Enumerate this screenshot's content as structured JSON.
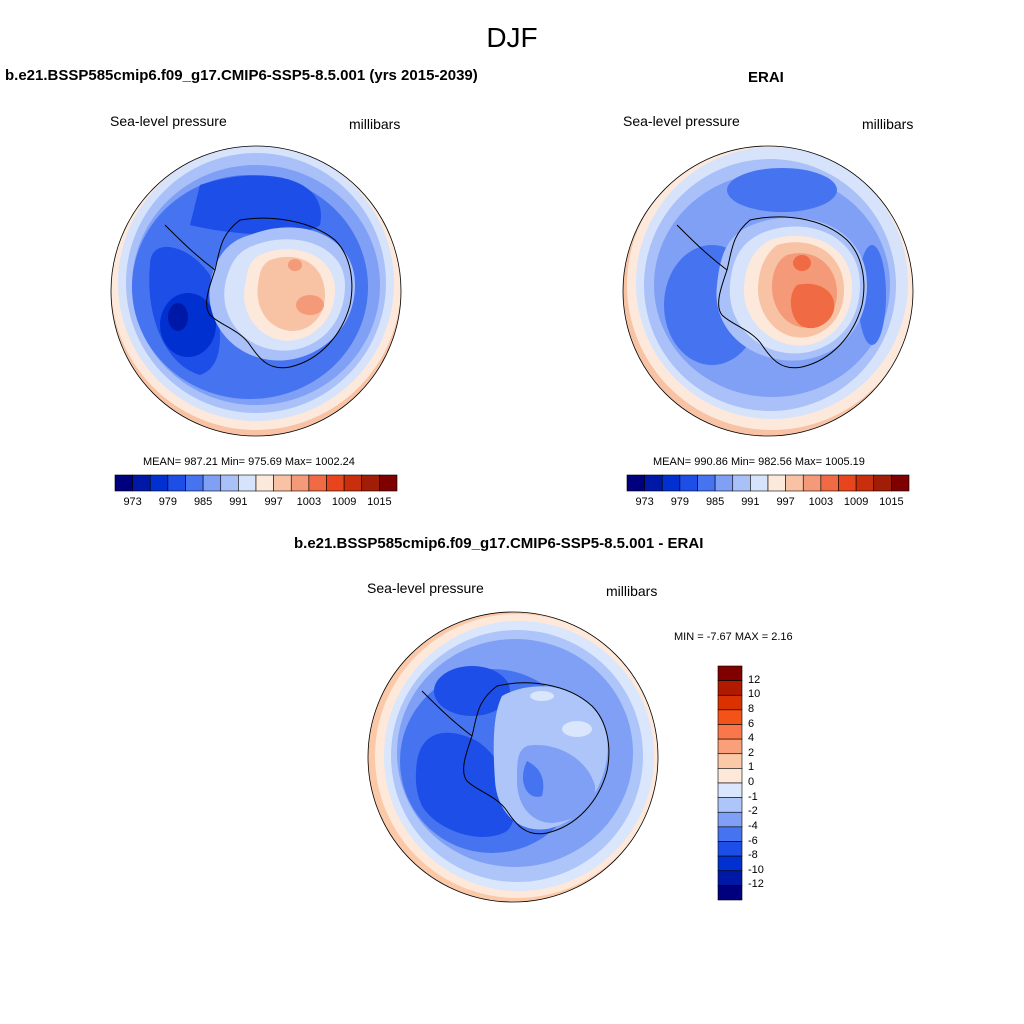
{
  "title": "DJF",
  "panels": [
    {
      "title": "b.e21.BSSP585cmip6.f09_g17.CMIP6-SSP5-8.5.001 (yrs 2015-2039)",
      "variable": "Sea-level pressure",
      "units": "millibars",
      "stats": "MEAN= 987.21  Min= 975.69  Max= 1002.24",
      "colorbar_labels": [
        "973",
        "979",
        "985",
        "991",
        "997",
        "1003",
        "1009",
        "1015"
      ]
    },
    {
      "title": "ERAI",
      "variable": "Sea-level pressure",
      "units": "millibars",
      "stats": "MEAN= 990.86  Min= 982.56  Max= 1005.19",
      "colorbar_labels": [
        "973",
        "979",
        "985",
        "991",
        "997",
        "1003",
        "1009",
        "1015"
      ]
    },
    {
      "title": "b.e21.BSSP585cmip6.f09_g17.CMIP6-SSP5-8.5.001 - ERAI",
      "variable": "Sea-level pressure",
      "units": "millibars",
      "stats": "MIN =  -7.67 MAX =   2.16",
      "colorbar_labels": [
        "12",
        "10",
        "8",
        "6",
        "4",
        "2",
        "1",
        "0",
        "-1",
        "-2",
        "-4",
        "-6",
        "-8",
        "-10",
        "-12"
      ]
    }
  ],
  "colors": {
    "slp_scale": [
      "#00007f",
      "#0018a6",
      "#0030d0",
      "#1e4ee8",
      "#4673f0",
      "#7fa0f5",
      "#a9c1f8",
      "#d6e3fb",
      "#fde9dc",
      "#f8c2a4",
      "#f49a78",
      "#f06a43",
      "#e7451d",
      "#c92f0d",
      "#a11d06",
      "#7f0000"
    ],
    "diff_scale": [
      "#800000",
      "#b01a00",
      "#d93200",
      "#f45318",
      "#f9774a",
      "#f9a07a",
      "#fbc8a8",
      "#fde8da",
      "#d9e6fb",
      "#aec5f9",
      "#7fa0f5",
      "#4673f0",
      "#1e4ee8",
      "#0030d0",
      "#0018a6",
      "#00007f"
    ]
  }
}
